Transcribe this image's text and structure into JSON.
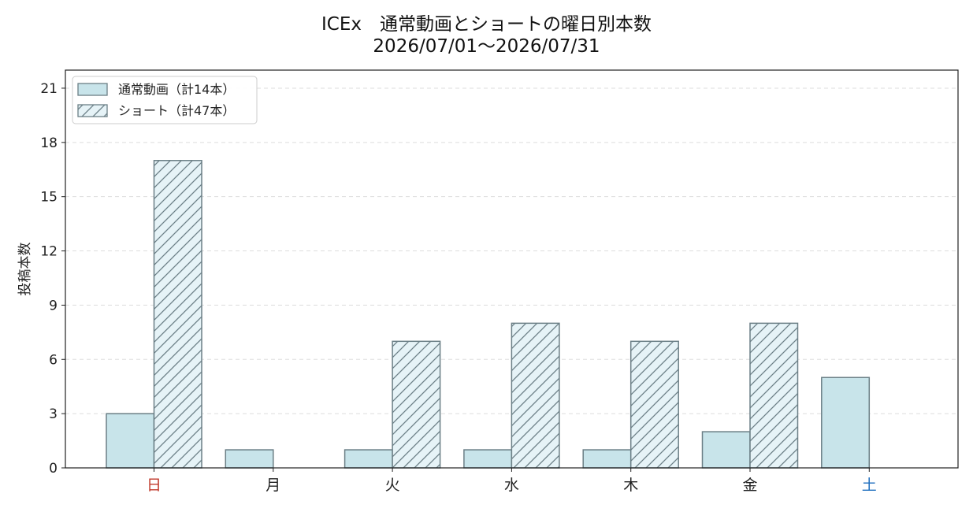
{
  "chart_data": {
    "type": "bar",
    "title": "ICEx　通常動画とショートの曜日別本数",
    "subtitle": "2026/07/01〜2026/07/31",
    "ylabel": "投稿本数",
    "xlabel": "",
    "categories": [
      "日",
      "月",
      "火",
      "水",
      "木",
      "金",
      "土"
    ],
    "category_colors": [
      "#c0392b",
      "#222222",
      "#222222",
      "#222222",
      "#222222",
      "#222222",
      "#1f6fbf"
    ],
    "ylim": [
      0,
      22
    ],
    "yticks": [
      0,
      3,
      6,
      9,
      12,
      15,
      18,
      21
    ],
    "grid": true,
    "legend_position": "top-left",
    "series": [
      {
        "name": "通常動画（計14本）",
        "values": [
          3,
          1,
          1,
          1,
          1,
          2,
          5
        ],
        "color": "#c8e4ea",
        "pattern": "solid"
      },
      {
        "name": "ショート（計47本）",
        "values": [
          17,
          0,
          7,
          8,
          7,
          8,
          0
        ],
        "color": "#e6f3f7",
        "pattern": "hatch"
      }
    ],
    "edge_color": "#6b7f86"
  }
}
